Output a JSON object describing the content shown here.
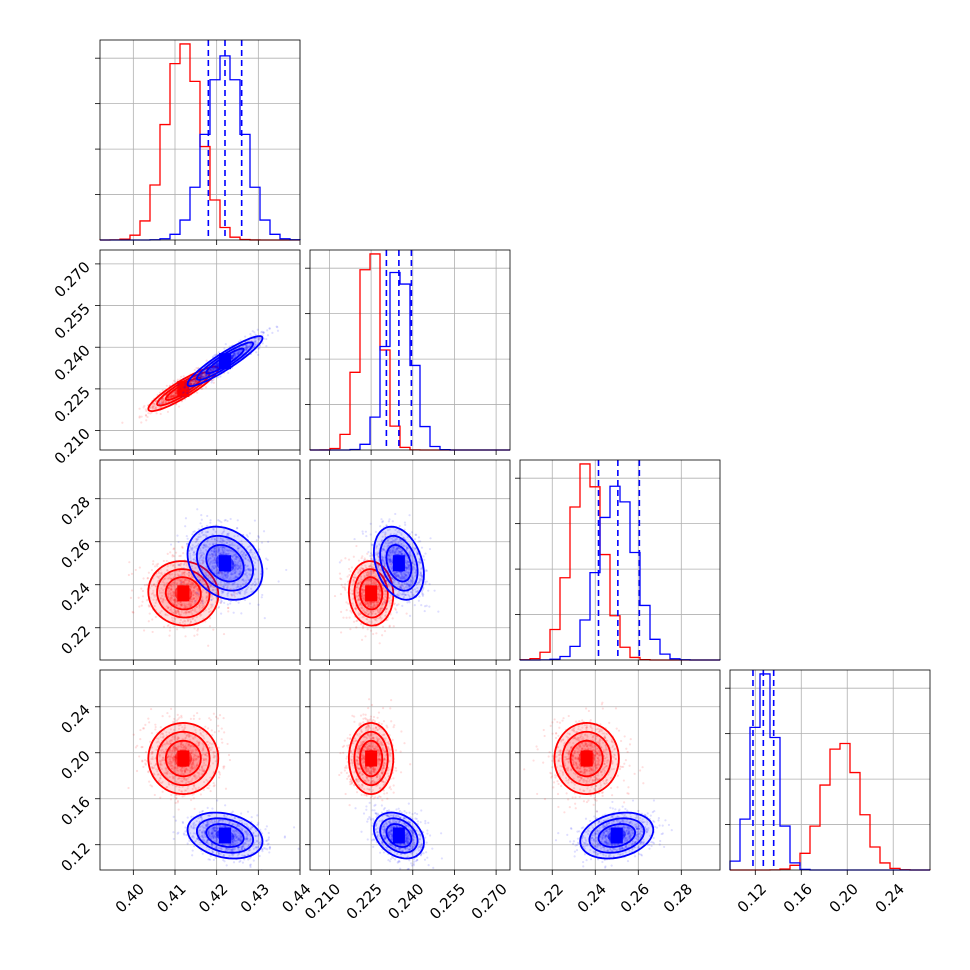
{
  "chart_data": {
    "type": "scatter",
    "subtype": "corner-plot",
    "title": "",
    "parameters": [
      {
        "name": "",
        "range": [
          0.392,
          0.44
        ],
        "ticks": [
          "0.40",
          "0.41",
          "0.42",
          "0.43",
          "0.44"
        ],
        "tick_values": [
          0.4,
          0.41,
          0.42,
          0.43,
          0.44
        ]
      },
      {
        "name": "",
        "range": [
          0.203,
          0.275
        ],
        "ticks": [
          "0.210",
          "0.225",
          "0.240",
          "0.255",
          "0.270"
        ],
        "tick_values": [
          0.21,
          0.225,
          0.24,
          0.255,
          0.27
        ]
      },
      {
        "name": "",
        "range": [
          0.205,
          0.298
        ],
        "ticks": [
          "0.22",
          "0.24",
          "0.26",
          "0.28"
        ],
        "tick_values": [
          0.22,
          0.24,
          0.26,
          0.28
        ]
      },
      {
        "name": "",
        "range": [
          0.098,
          0.272
        ],
        "ticks": [
          "0.12",
          "0.16",
          "0.20",
          "0.24"
        ],
        "tick_values": [
          0.12,
          0.16,
          0.2,
          0.24
        ]
      }
    ],
    "series": [
      {
        "color": "#ff0000",
        "means": [
          0.412,
          0.225,
          0.236,
          0.195
        ],
        "sds": [
          0.0042,
          0.004,
          0.0075,
          0.0155
        ],
        "rho": [
          [
            1,
            0.9,
            -0.05,
            0.0
          ],
          [
            0.9,
            1,
            -0.05,
            0.0
          ],
          [
            -0.05,
            -0.05,
            1,
            0.0
          ],
          [
            0.0,
            0.0,
            0.0,
            1
          ]
        ]
      },
      {
        "color": "#0000ff",
        "means": [
          0.422,
          0.235,
          0.25,
          0.128
        ],
        "sds": [
          0.0045,
          0.0045,
          0.0085,
          0.01
        ],
        "rho": [
          [
            1,
            0.92,
            -0.25,
            -0.25
          ],
          [
            0.92,
            1,
            -0.3,
            -0.3
          ],
          [
            -0.25,
            -0.3,
            1,
            0.25
          ],
          [
            -0.25,
            -0.3,
            0.25,
            1
          ]
        ]
      }
    ],
    "quantile_lines": {
      "color": "#0000ff",
      "style": "dashed",
      "values": [
        [
          0.418,
          0.422,
          0.426
        ],
        [
          0.2305,
          0.235,
          0.2395
        ],
        [
          0.2415,
          0.2505,
          0.2605
        ],
        [
          0.118,
          0.127,
          0.136
        ]
      ]
    },
    "grid": true,
    "legend": "none"
  }
}
